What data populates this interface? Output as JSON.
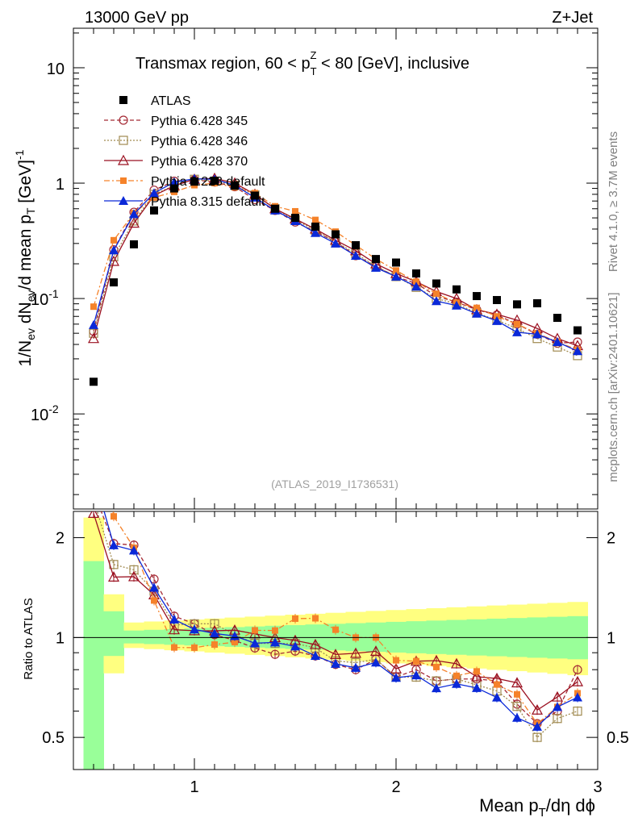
{
  "header": {
    "energy_label": "13000 GeV pp",
    "process_label": "Z+Jet",
    "title_prefix": "Transmax region, 60 < p",
    "title_sub": "T",
    "title_sup": "Z",
    "title_suffix": " < 80 [GeV], inclusive",
    "watermark": "(ATLAS_2019_I1736531)",
    "side_rivet": "Rivet 4.1.0, ≥ 3.7M events",
    "side_site": "mcplots.cern.ch [arXiv:2401.10621]"
  },
  "axes": {
    "ylabel_main": "1/N_ev dN_ev/d mean p_T [GeV]^-1",
    "ylabel_ratio": "Ratio to ATLAS",
    "xlabel": "Mean p_T/dη dϕ",
    "main_ticks": [
      "10^-2",
      "10^-1",
      "1",
      "10"
    ],
    "ratio_ticks": [
      "0.5",
      "1",
      "2"
    ],
    "x_ticks": [
      "1",
      "2",
      "3"
    ]
  },
  "colors": {
    "atlas": "#000000",
    "p345": "#a52a35",
    "p346": "#a08a50",
    "p370": "#9b1020",
    "p8_228": "#f5822a",
    "p8_315": "#0a28d8",
    "band_green": "#99ff99",
    "band_yellow": "#ffff80"
  },
  "chart_data": {
    "type": "scatter",
    "x_range": [
      0.4,
      3.0
    ],
    "main": {
      "yscale": "log",
      "ylim": [
        0.0015,
        22
      ]
    },
    "ratio": {
      "yscale": "log",
      "ylim": [
        0.4,
        2.4
      ]
    },
    "legend": [
      "ATLAS",
      "Pythia 6.428 345",
      "Pythia 6.428 346",
      "Pythia 6.428 370",
      "Pythia 8.228 default",
      "Pythia 8.315 default"
    ],
    "x": [
      0.5,
      0.6,
      0.7,
      0.8,
      0.9,
      1.0,
      1.1,
      1.2,
      1.3,
      1.4,
      1.5,
      1.6,
      1.7,
      1.8,
      1.9,
      2.0,
      2.1,
      2.2,
      2.3,
      2.4,
      2.5,
      2.6,
      2.7,
      2.8,
      2.9
    ],
    "atlas": [
      0.019,
      0.138,
      0.295,
      0.58,
      0.9,
      1.03,
      1.05,
      0.95,
      0.78,
      0.6,
      0.5,
      0.42,
      0.36,
      0.29,
      0.22,
      0.205,
      0.165,
      0.135,
      0.12,
      0.105,
      0.097,
      0.089,
      0.091,
      0.068,
      0.053
    ],
    "series": [
      {
        "name": "Pythia 6.428 345",
        "key": "p345",
        "marker": "circle",
        "dash": "5,3",
        "values": [
          0.052,
          0.265,
          0.56,
          0.87,
          1.04,
          1.07,
          1.02,
          0.93,
          0.72,
          0.58,
          0.46,
          0.38,
          0.31,
          0.235,
          0.19,
          0.155,
          0.135,
          0.105,
          0.093,
          0.08,
          0.072,
          0.06,
          0.049,
          0.041,
          0.042
        ]
      },
      {
        "name": "Pythia 6.428 346",
        "key": "p346",
        "marker": "square-open",
        "dash": "2,2",
        "values": [
          0.05,
          0.23,
          0.47,
          0.8,
          0.95,
          1.08,
          1.04,
          0.96,
          0.79,
          0.6,
          0.48,
          0.39,
          0.31,
          0.245,
          0.19,
          0.155,
          0.125,
          0.1,
          0.09,
          0.075,
          0.065,
          0.055,
          0.045,
          0.038,
          0.032
        ]
      },
      {
        "name": "Pythia 6.428 370",
        "key": "p370",
        "marker": "triangle-open",
        "dash": "",
        "values": [
          0.045,
          0.21,
          0.45,
          0.78,
          0.95,
          1.08,
          1.1,
          1.0,
          0.8,
          0.6,
          0.49,
          0.4,
          0.32,
          0.26,
          0.2,
          0.165,
          0.14,
          0.115,
          0.1,
          0.08,
          0.073,
          0.065,
          0.055,
          0.045,
          0.039
        ]
      },
      {
        "name": "Pythia 8.228 default",
        "key": "p8_228",
        "marker": "square-filled",
        "dash": "7,3,2,3",
        "values": [
          0.085,
          0.32,
          0.55,
          0.75,
          0.84,
          0.96,
          1.0,
          0.92,
          0.82,
          0.63,
          0.57,
          0.48,
          0.38,
          0.29,
          0.22,
          0.175,
          0.14,
          0.11,
          0.092,
          0.083,
          0.07,
          0.06,
          0.05,
          0.042,
          0.036
        ]
      },
      {
        "name": "Pythia 8.315 default",
        "key": "p8_315",
        "marker": "triangle-filled",
        "dash": "",
        "values": [
          0.059,
          0.262,
          0.54,
          0.82,
          1.02,
          1.09,
          1.08,
          0.96,
          0.75,
          0.58,
          0.47,
          0.37,
          0.3,
          0.235,
          0.185,
          0.155,
          0.127,
          0.095,
          0.087,
          0.074,
          0.064,
          0.051,
          0.049,
          0.042,
          0.035
        ]
      }
    ],
    "ratio_series": {
      "p345": [
        2.75,
        1.92,
        1.9,
        1.5,
        1.16,
        1.1,
        1.02,
        0.98,
        0.93,
        0.89,
        0.91,
        0.88,
        0.83,
        0.8,
        0.86,
        0.76,
        0.8,
        0.74,
        0.75,
        0.75,
        0.74,
        0.63,
        0.55,
        0.6,
        0.8
      ],
      "p346": [
        2.6,
        1.66,
        1.6,
        1.38,
        1.09,
        1.1,
        1.1,
        1.02,
        0.96,
        0.96,
        0.96,
        0.93,
        0.85,
        0.84,
        0.86,
        0.76,
        0.76,
        0.74,
        0.75,
        0.72,
        0.69,
        0.62,
        0.5,
        0.57,
        0.6
      ]
    }
  }
}
